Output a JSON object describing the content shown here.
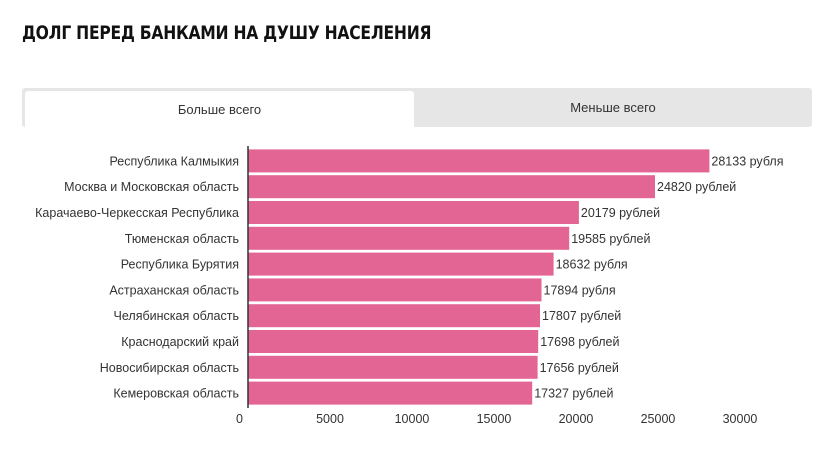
{
  "title": "ДОЛГ ПЕРЕД БАНКАМИ НА ДУШУ НАСЕЛЕНИЯ",
  "tabs": [
    {
      "label": "Больше всего",
      "active": true
    },
    {
      "label": "Меньше всего",
      "active": false
    }
  ],
  "colors": {
    "bar": "#e36594",
    "axis": "#333333"
  },
  "chart_data": {
    "type": "bar",
    "orientation": "horizontal",
    "categories": [
      "Республика Калмыкия",
      "Москва и Московская область",
      "Карачаево-Черкесская Республика",
      "Тюменская область",
      "Республика Бурятия",
      "Астраханская область",
      "Челябинская область",
      "Краснодарский край",
      "Новосибирская область",
      "Кемеровская область"
    ],
    "values": [
      28133,
      24820,
      20179,
      19585,
      18632,
      17894,
      17807,
      17698,
      17656,
      17327
    ],
    "value_labels": [
      "28133 рубля",
      "24820 рублей",
      "20179 рублей",
      "19585 рублей",
      "18632 рубля",
      "17894 рубля",
      "17807 рублей",
      "17698 рублей",
      "17656 рублей",
      "17327 рублей"
    ],
    "xlim": [
      0,
      30000
    ],
    "xticks": [
      0,
      5000,
      10000,
      15000,
      20000,
      25000,
      30000
    ],
    "grid": false
  }
}
